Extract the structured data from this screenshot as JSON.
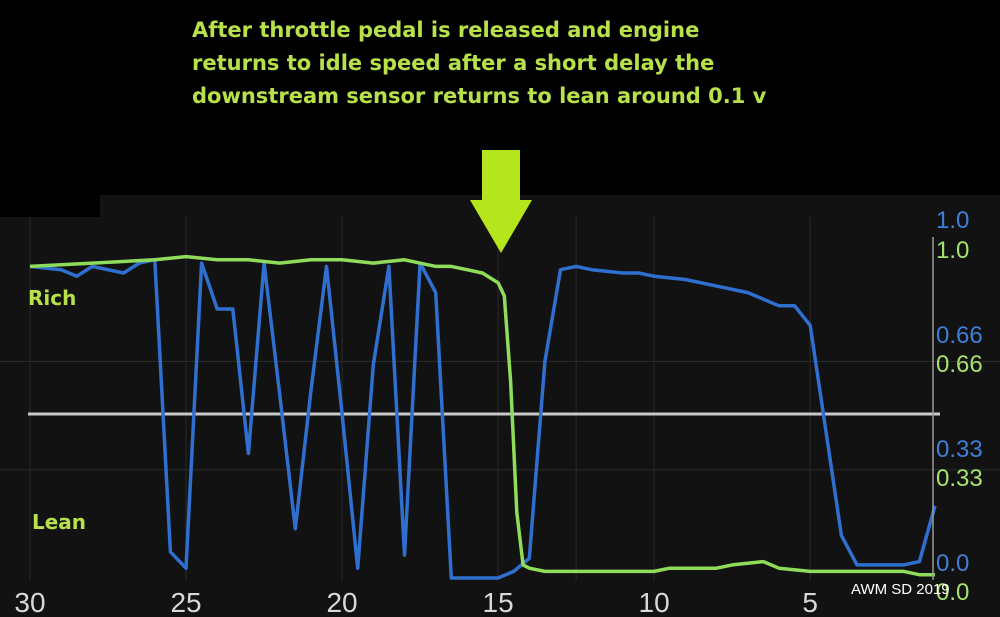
{
  "annotation": {
    "line1": "After throttle  pedal  is released  and engine",
    "line2": "returns to idle speed  after a short delay  the",
    "line3": "downstream sensor returns to lean    around 0.1 v"
  },
  "labels": {
    "rich": "Rich",
    "lean": "Lean"
  },
  "watermark": "AWM   SD 2019",
  "colors": {
    "background": "#000000",
    "plot_background": "#121212",
    "grid": "#2a2a2a",
    "upstream_series": "#2f6fd0",
    "downstream_series": "#8fdc5a",
    "reference_line": "#c8c8c8",
    "annotation_text": "#b7e14a",
    "arrow": "#b5e61d"
  },
  "chart_data": {
    "type": "line",
    "xlim": [
      30,
      1
    ],
    "x_ticks": [
      30,
      25,
      20,
      15,
      10,
      5
    ],
    "y_left_axis": {
      "ticks": [
        1.0,
        0.66,
        0.33,
        0.0
      ],
      "labels": [
        "1.0",
        "0.66",
        "0.33",
        "0.0"
      ],
      "color": "#3f7fd6"
    },
    "y_right_axis": {
      "ticks": [
        1.0,
        0.66,
        0.33,
        0.0
      ],
      "labels": [
        "1.0",
        "0.66",
        "0.33",
        "0.0"
      ],
      "color": "#a6e26b"
    },
    "reference_line_y": 0.5,
    "grid": true,
    "series": [
      {
        "color": "#2f6fd0",
        "x": [
          30,
          29,
          28.5,
          28,
          27,
          26.5,
          26,
          25.5,
          25,
          24.5,
          24,
          23.5,
          23,
          22.5,
          22,
          21.5,
          21,
          20.5,
          20,
          19.5,
          19,
          18.5,
          18,
          17.5,
          17,
          16.5,
          16,
          15.5,
          15,
          14.5,
          14,
          13.5,
          13,
          12.5,
          12,
          11,
          10.5,
          10,
          9,
          8,
          7,
          6,
          5.5,
          5,
          4.5,
          4,
          3.5,
          3,
          2.5,
          2,
          1.5,
          1
        ],
        "y": [
          0.95,
          0.94,
          0.92,
          0.95,
          0.93,
          0.96,
          0.97,
          0.08,
          0.03,
          0.96,
          0.82,
          0.82,
          0.38,
          0.96,
          0.56,
          0.15,
          0.57,
          0.95,
          0.5,
          0.03,
          0.65,
          0.95,
          0.07,
          0.96,
          0.87,
          0.0,
          0.0,
          0.0,
          0.0,
          0.02,
          0.06,
          0.66,
          0.94,
          0.95,
          0.94,
          0.93,
          0.93,
          0.92,
          0.91,
          0.89,
          0.87,
          0.83,
          0.83,
          0.77,
          0.45,
          0.13,
          0.04,
          0.04,
          0.04,
          0.04,
          0.05,
          0.22
        ]
      },
      {
        "color": "#8fdc5a",
        "x": [
          30,
          28,
          26,
          25,
          24,
          23,
          22,
          21,
          20,
          19,
          18,
          17,
          16.5,
          16,
          15.5,
          15,
          14.8,
          14.6,
          14.4,
          14.2,
          14,
          13.5,
          13,
          12,
          10,
          9.5,
          8,
          7.5,
          6.5,
          6,
          5,
          4,
          3,
          2,
          1.5,
          1
        ],
        "y": [
          0.95,
          0.96,
          0.97,
          0.98,
          0.97,
          0.97,
          0.96,
          0.97,
          0.97,
          0.96,
          0.97,
          0.95,
          0.95,
          0.94,
          0.93,
          0.9,
          0.86,
          0.6,
          0.2,
          0.04,
          0.03,
          0.02,
          0.02,
          0.02,
          0.02,
          0.03,
          0.03,
          0.04,
          0.05,
          0.03,
          0.02,
          0.02,
          0.02,
          0.02,
          0.01,
          0.01
        ]
      }
    ]
  }
}
